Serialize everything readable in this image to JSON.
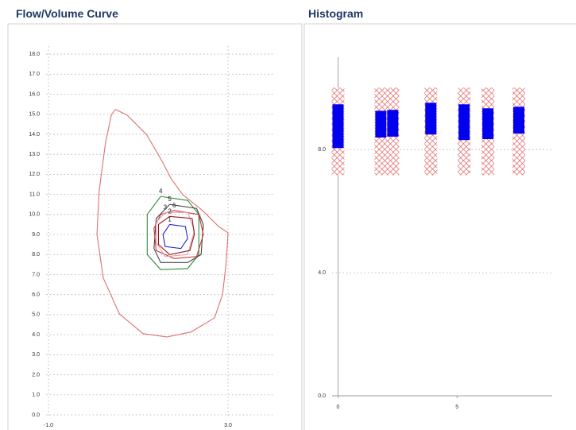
{
  "chart_data": [
    {
      "type": "line",
      "title": "Flow/Volume Curve",
      "xlim": [
        -1.05,
        4
      ],
      "ylim": [
        -0.1,
        18.4
      ],
      "xticks": [
        {
          "value": -1,
          "label": "-1.0"
        },
        {
          "value": 3,
          "label": "3.0"
        }
      ],
      "yticks": [
        {
          "value": 0,
          "label": "0.0"
        },
        {
          "value": 1,
          "label": "1.0"
        },
        {
          "value": 2,
          "label": "2.0"
        },
        {
          "value": 3,
          "label": "3.0"
        },
        {
          "value": 4,
          "label": "4.0"
        },
        {
          "value": 5,
          "label": "5.0"
        },
        {
          "value": 6,
          "label": "6.0"
        },
        {
          "value": 7,
          "label": "7.0"
        },
        {
          "value": 8,
          "label": "8.0"
        },
        {
          "value": 9,
          "label": "9.0"
        },
        {
          "value": 10,
          "label": "10.0"
        },
        {
          "value": 11,
          "label": "11.0"
        },
        {
          "value": 12,
          "label": "12.0"
        },
        {
          "value": 13,
          "label": "13.0"
        },
        {
          "value": 14,
          "label": "14.0"
        },
        {
          "value": 15,
          "label": "15.0"
        },
        {
          "value": 16,
          "label": "16.0"
        },
        {
          "value": 17,
          "label": "17.0"
        },
        {
          "value": 18,
          "label": "18.0"
        }
      ],
      "grid": true,
      "series": [
        {
          "color": "#e07070",
          "x": [
            0.49,
            0.75,
            1.19,
            1.55,
            1.73,
            1.99,
            2.43,
            2.79,
            3.0,
            2.96,
            2.88,
            2.7,
            2.17,
            1.64,
            1.11,
            0.58,
            0.22,
            0.08,
            0.13,
            0.27,
            0.4,
            0.49
          ],
          "y": [
            15.24,
            14.96,
            13.97,
            12.58,
            11.79,
            10.99,
            10.2,
            9.4,
            9.09,
            7.62,
            6.03,
            4.84,
            4.13,
            3.89,
            4.05,
            5.04,
            6.83,
            9.0,
            11.19,
            13.57,
            14.96,
            15.24
          ]
        },
        {
          "name": "4",
          "color": "#2e8b3a",
          "x": [
            1.5,
            2.1,
            2.35,
            2.35,
            2.1,
            1.5,
            1.2,
            1.2,
            1.5
          ],
          "y": [
            10.9,
            10.7,
            10.0,
            8.0,
            7.3,
            7.25,
            8.0,
            10.0,
            10.9
          ]
        },
        {
          "name": "5",
          "color": "#444444",
          "x": [
            1.7,
            2.3,
            2.45,
            2.4,
            2.1,
            1.5,
            1.35,
            1.4,
            1.7
          ],
          "y": [
            10.5,
            10.3,
            9.5,
            8.0,
            7.6,
            7.6,
            8.3,
            9.8,
            10.5
          ]
        },
        {
          "name": "6",
          "color": "#cc3333",
          "x": [
            1.8,
            2.35,
            2.45,
            2.3,
            1.8,
            1.4,
            1.35,
            1.5,
            1.8
          ],
          "y": [
            10.2,
            10.0,
            9.0,
            7.9,
            7.8,
            8.2,
            9.3,
            10.0,
            10.2
          ]
        },
        {
          "name": "3",
          "color": "#e8a0b0",
          "x": [
            1.6,
            2.1,
            2.25,
            2.1,
            1.6,
            1.4,
            1.4,
            1.6
          ],
          "y": [
            10.1,
            10.1,
            9.2,
            8.0,
            7.9,
            8.6,
            9.6,
            10.1
          ]
        },
        {
          "name": "2",
          "color": "#8b1a1a",
          "x": [
            1.7,
            2.2,
            2.25,
            2.15,
            1.7,
            1.45,
            1.45,
            1.7
          ],
          "y": [
            9.9,
            9.8,
            9.0,
            8.2,
            8.0,
            8.5,
            9.5,
            9.9
          ]
        },
        {
          "name": "1",
          "color": "#2222cc",
          "x": [
            1.7,
            2.05,
            2.1,
            1.95,
            1.6,
            1.55,
            1.7
          ],
          "y": [
            9.5,
            9.4,
            8.8,
            8.3,
            8.4,
            9.0,
            9.5
          ]
        }
      ]
    },
    {
      "type": "bar",
      "title": "Histogram",
      "xlim": [
        -0.25,
        9
      ],
      "ylim": [
        0,
        11
      ],
      "xticks": [
        0,
        5
      ],
      "yticks": [
        {
          "value": 0,
          "label": "0.0"
        },
        {
          "value": 4,
          "label": "4.0"
        },
        {
          "value": 8,
          "label": "8.0"
        }
      ],
      "grid": true,
      "x": [
        0,
        1.8,
        2.3,
        3.9,
        5.3,
        6.3,
        7.6
      ],
      "ranges": {
        "color": "#e06060",
        "low": [
          7.17,
          7.17,
          7.17,
          7.17,
          7.17,
          7.17,
          7.17
        ],
        "high": [
          10.01,
          10.01,
          10.01,
          10.01,
          10.01,
          10.01,
          10.01
        ]
      },
      "boxes": {
        "color": "#0000ee",
        "low": [
          8.05,
          8.39,
          8.42,
          8.49,
          8.31,
          8.34,
          8.52
        ],
        "high": [
          9.47,
          9.26,
          9.29,
          9.52,
          9.47,
          9.34,
          9.39
        ]
      }
    }
  ]
}
